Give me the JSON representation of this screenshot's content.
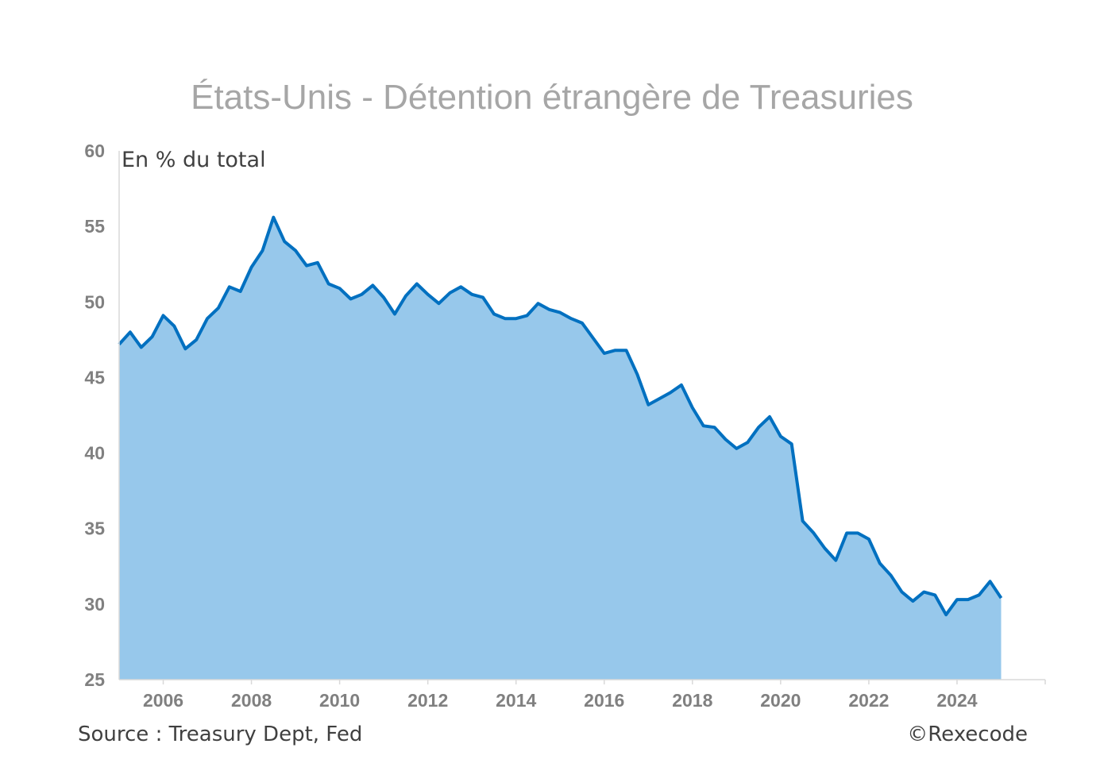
{
  "chart_data": {
    "type": "area",
    "title": "États-Unis - Détention étrangère de Treasuries",
    "ylabel": "En % du total",
    "xlabel": "",
    "source": "Source : Treasury Dept, Fed",
    "copyright": "©Rexecode",
    "ylim": [
      25,
      60
    ],
    "xlim": [
      2005.0,
      2026.0
    ],
    "yticks": [
      25,
      30,
      35,
      40,
      45,
      50,
      55,
      60
    ],
    "xticks": [
      2006,
      2008,
      2010,
      2012,
      2014,
      2016,
      2018,
      2020,
      2022,
      2024
    ],
    "grid": false,
    "legend": "none",
    "colors": {
      "line": "#0070c0",
      "fill": "#97c8eb",
      "axis": "#d9d9d9",
      "title": "#a6a6a6",
      "ticks": "#808080"
    },
    "series": [
      {
        "x": [
          2005.0,
          2005.25,
          2005.5,
          2005.75,
          2006.0,
          2006.25,
          2006.5,
          2006.75,
          2007.0,
          2007.25,
          2007.5,
          2007.75,
          2008.0,
          2008.25,
          2008.5,
          2008.75,
          2009.0,
          2009.25,
          2009.5,
          2009.75,
          2010.0,
          2010.25,
          2010.5,
          2010.75,
          2011.0,
          2011.25,
          2011.5,
          2011.75,
          2012.0,
          2012.25,
          2012.5,
          2012.75,
          2013.0,
          2013.25,
          2013.5,
          2013.75,
          2014.0,
          2014.25,
          2014.5,
          2014.75,
          2015.0,
          2015.25,
          2015.5,
          2015.75,
          2016.0,
          2016.25,
          2016.5,
          2016.75,
          2017.0,
          2017.25,
          2017.5,
          2017.75,
          2018.0,
          2018.25,
          2018.5,
          2018.75,
          2019.0,
          2019.25,
          2019.5,
          2019.75,
          2020.0,
          2020.25,
          2020.5,
          2020.75,
          2021.0,
          2021.25,
          2021.5,
          2021.75,
          2022.0,
          2022.25,
          2022.5,
          2022.75,
          2023.0,
          2023.25,
          2023.5,
          2023.75,
          2024.0,
          2024.25,
          2024.5,
          2024.75,
          2025.0
        ],
        "values": [
          47.2,
          48.0,
          47.0,
          47.7,
          49.1,
          48.4,
          46.9,
          47.5,
          48.9,
          49.6,
          51.0,
          50.7,
          52.3,
          53.4,
          55.6,
          54.0,
          53.4,
          52.4,
          52.6,
          51.2,
          50.9,
          50.2,
          50.5,
          51.1,
          50.3,
          49.2,
          50.4,
          51.2,
          50.5,
          49.9,
          50.6,
          51.0,
          50.5,
          50.3,
          49.2,
          48.9,
          48.9,
          49.1,
          49.9,
          49.5,
          49.3,
          48.9,
          48.6,
          47.6,
          46.6,
          46.8,
          46.8,
          45.2,
          43.2,
          43.6,
          44.0,
          44.5,
          43.0,
          41.8,
          41.7,
          40.9,
          40.3,
          40.7,
          41.7,
          42.4,
          41.1,
          40.6,
          35.5,
          34.7,
          33.7,
          32.9,
          34.7,
          34.7,
          34.3,
          32.7,
          31.9,
          30.8,
          30.2,
          30.8,
          30.6,
          29.3,
          30.3,
          30.3,
          30.6,
          31.5,
          30.4
        ]
      }
    ]
  }
}
